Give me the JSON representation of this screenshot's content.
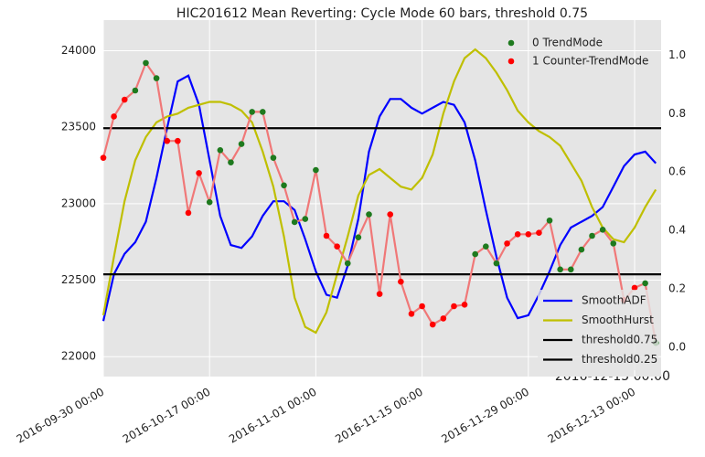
{
  "chart_data": {
    "type": "line",
    "title": "HIC201612 Mean Reverting: Cycle Mode 60 bars, threshold 0.75",
    "categories": [
      "2016-09-30 00:00",
      null,
      null,
      null,
      null,
      null,
      null,
      null,
      null,
      null,
      "2016-10-17 00:00",
      null,
      null,
      null,
      null,
      null,
      null,
      null,
      null,
      null,
      "2016-11-01 00:00",
      null,
      null,
      null,
      null,
      null,
      null,
      null,
      null,
      null,
      "2016-11-15 00:00",
      null,
      null,
      null,
      null,
      null,
      null,
      null,
      null,
      null,
      "2016-11-29 00:00",
      null,
      null,
      null,
      null,
      null,
      null,
      null,
      null,
      null,
      "2016-12-13 00:00",
      null,
      null
    ],
    "corner_label": "2016-12-15 00:00",
    "price": {
      "color": "#f07878",
      "values": [
        23300,
        23570,
        23680,
        23740,
        23920,
        23820,
        23410,
        23410,
        22940,
        23200,
        23010,
        23350,
        23270,
        23390,
        23600,
        23600,
        23300,
        23120,
        22880,
        22900,
        23220,
        22790,
        22720,
        22610,
        22780,
        22930,
        22410,
        22930,
        22490,
        22280,
        22330,
        22210,
        22250,
        22330,
        22340,
        22670,
        22720,
        22610,
        22740,
        22800,
        22800,
        22810,
        22890,
        22570,
        22570,
        22700,
        22790,
        22830,
        22740,
        22370,
        22450,
        22480,
        22090
      ]
    },
    "modes": [
      1,
      1,
      1,
      0,
      0,
      0,
      1,
      1,
      1,
      1,
      0,
      0,
      0,
      0,
      0,
      0,
      0,
      0,
      0,
      0,
      0,
      1,
      1,
      0,
      0,
      0,
      1,
      1,
      1,
      1,
      1,
      1,
      1,
      1,
      1,
      0,
      0,
      0,
      1,
      1,
      1,
      1,
      0,
      0,
      0,
      0,
      0,
      0,
      0,
      1,
      1,
      0,
      0
    ],
    "mode_legend": [
      {
        "name": "0 TrendMode",
        "color": "#1e7a1e"
      },
      {
        "name": "1 Counter-TrendMode",
        "color": "#ff0000"
      }
    ],
    "series": [
      {
        "name": "SmoothADF",
        "color": "#0000ff",
        "axis": "y2",
        "values": [
          0.09,
          0.25,
          0.32,
          0.36,
          0.43,
          0.58,
          0.75,
          0.91,
          0.93,
          0.83,
          0.64,
          0.45,
          0.35,
          0.34,
          0.38,
          0.45,
          0.5,
          0.5,
          0.47,
          0.37,
          0.26,
          0.18,
          0.17,
          0.28,
          0.44,
          0.67,
          0.79,
          0.85,
          0.85,
          0.82,
          0.8,
          0.82,
          0.84,
          0.83,
          0.77,
          0.64,
          0.47,
          0.31,
          0.17,
          0.1,
          0.11,
          0.18,
          0.26,
          0.35,
          0.41,
          0.43,
          0.45,
          0.48,
          0.55,
          0.62,
          0.66,
          0.67,
          0.63
        ]
      },
      {
        "name": "SmoothHurst",
        "color": "#bfbf00",
        "axis": "y2",
        "values": [
          0.11,
          0.31,
          0.5,
          0.64,
          0.72,
          0.77,
          0.79,
          0.8,
          0.82,
          0.83,
          0.84,
          0.84,
          0.83,
          0.81,
          0.77,
          0.67,
          0.55,
          0.38,
          0.17,
          0.07,
          0.05,
          0.12,
          0.25,
          0.38,
          0.52,
          0.59,
          0.61,
          0.58,
          0.55,
          0.54,
          0.58,
          0.66,
          0.8,
          0.91,
          0.99,
          1.02,
          0.99,
          0.94,
          0.88,
          0.81,
          0.77,
          0.74,
          0.72,
          0.69,
          0.63,
          0.57,
          0.48,
          0.41,
          0.37,
          0.36,
          0.41,
          0.48,
          0.54
        ]
      },
      {
        "name": "threshold0.75",
        "color": "#000000",
        "axis": "y2",
        "value": 0.75
      },
      {
        "name": "threshold0.25",
        "color": "#000000",
        "axis": "y2",
        "value": 0.25
      }
    ],
    "ylim": [
      21870,
      24200
    ],
    "yticks": [
      22000,
      22500,
      23000,
      23500,
      24000
    ],
    "y2lim": [
      -0.1,
      1.12
    ],
    "y2ticks": [
      {
        "value": 0,
        "label": "0.0"
      },
      0.2,
      0.4,
      0.6,
      0.8,
      {
        "value": 1,
        "label": "1.0"
      }
    ],
    "grid": true,
    "background": "#e5e5e5"
  }
}
